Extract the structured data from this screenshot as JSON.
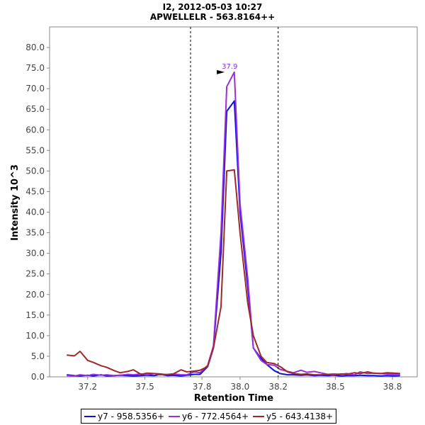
{
  "chart_data": {
    "type": "line",
    "title": "I2, 2012-05-03 10:27",
    "subtitle": "APWELLELR - 563.8164++",
    "xlabel": "Retention Time",
    "ylabel": "Intensity 10^3",
    "xlim": [
      37.0,
      38.93
    ],
    "ylim": [
      0,
      85
    ],
    "x_ticks": [
      "37.2",
      "37.5",
      "37.8",
      "38.0",
      "38.2",
      "38.5",
      "38.8"
    ],
    "x_tick_values": [
      37.2,
      37.5,
      37.8,
      38.0,
      38.2,
      38.5,
      38.8
    ],
    "y_ticks": [
      "0.0",
      "5.0",
      "10.0",
      "15.0",
      "20.0",
      "25.0",
      "30.0",
      "35.0",
      "40.0",
      "45.0",
      "50.0",
      "55.0",
      "60.0",
      "65.0",
      "70.0",
      "75.0",
      "80.0"
    ],
    "y_tick_values": [
      0,
      5,
      10,
      15,
      20,
      25,
      30,
      35,
      40,
      45,
      50,
      55,
      60,
      65,
      70,
      75,
      80
    ],
    "integration_bounds": [
      37.74,
      38.2
    ],
    "peak_annotation": {
      "x": 37.93,
      "y": 74.0,
      "label": "37.9",
      "color": "#8a2be2"
    },
    "series": [
      {
        "name": "y7 - 958.5356+",
        "color": "#1010e0",
        "x": [
          37.09,
          37.13,
          37.16,
          37.2,
          37.23,
          37.27,
          37.3,
          37.34,
          37.37,
          37.41,
          37.44,
          37.48,
          37.51,
          37.55,
          37.58,
          37.62,
          37.65,
          37.69,
          37.72,
          37.76,
          37.79,
          37.83,
          37.86,
          37.9,
          37.93,
          37.97,
          38.0,
          38.04,
          38.07,
          38.11,
          38.14,
          38.18,
          38.21,
          38.25,
          38.28,
          38.32,
          38.35,
          38.39,
          38.42,
          38.46,
          38.49,
          38.53,
          38.56,
          38.6,
          38.63,
          38.67,
          38.7,
          38.74,
          38.77,
          38.81,
          38.84
        ],
        "values": [
          0.5,
          0.3,
          0.2,
          0.4,
          0.2,
          0.5,
          0.2,
          0.3,
          0.4,
          0.3,
          0.2,
          0.3,
          0.4,
          0.3,
          0.6,
          0.3,
          0.4,
          0.2,
          0.4,
          0.6,
          0.6,
          2.5,
          7.0,
          30.0,
          64.5,
          67.0,
          40.0,
          22.0,
          7.0,
          4.5,
          3.0,
          1.5,
          0.8,
          0.5,
          0.5,
          0.4,
          0.5,
          0.3,
          0.4,
          0.3,
          0.4,
          0.2,
          0.3,
          0.3,
          0.4,
          0.3,
          0.3,
          0.2,
          0.3,
          0.2,
          0.3
        ]
      },
      {
        "name": "y6 - 772.4564+",
        "color": "#9a30d8",
        "x": [
          37.09,
          37.13,
          37.16,
          37.2,
          37.23,
          37.27,
          37.3,
          37.34,
          37.37,
          37.41,
          37.44,
          37.48,
          37.51,
          37.55,
          37.58,
          37.62,
          37.65,
          37.69,
          37.72,
          37.76,
          37.79,
          37.83,
          37.86,
          37.9,
          37.93,
          37.97,
          38.0,
          38.04,
          38.07,
          38.11,
          38.14,
          38.18,
          38.21,
          38.25,
          38.28,
          38.32,
          38.35,
          38.39,
          38.42,
          38.46,
          38.49,
          38.53,
          38.56,
          38.6,
          38.63,
          38.67,
          38.7,
          38.74,
          38.77,
          38.81,
          38.84
        ],
        "values": [
          0.3,
          0.2,
          0.5,
          0.3,
          0.6,
          0.4,
          0.5,
          0.3,
          0.4,
          0.6,
          0.5,
          0.7,
          0.5,
          0.8,
          0.5,
          0.6,
          0.7,
          0.5,
          0.5,
          1.2,
          1.0,
          2.8,
          7.5,
          35.0,
          70.5,
          74.0,
          42.0,
          24.0,
          7.0,
          4.0,
          3.0,
          2.8,
          1.8,
          1.3,
          1.0,
          1.6,
          1.1,
          1.3,
          1.0,
          0.6,
          0.7,
          0.6,
          0.8,
          0.5,
          1.2,
          0.8,
          0.9,
          0.8,
          0.7,
          0.6,
          0.7
        ]
      },
      {
        "name": "y5 - 643.4138+",
        "color": "#a02828",
        "x": [
          37.09,
          37.13,
          37.16,
          37.2,
          37.23,
          37.27,
          37.3,
          37.34,
          37.37,
          37.41,
          37.44,
          37.48,
          37.51,
          37.55,
          37.58,
          37.62,
          37.65,
          37.69,
          37.72,
          37.76,
          37.79,
          37.83,
          37.86,
          37.9,
          37.93,
          37.97,
          38.0,
          38.04,
          38.07,
          38.11,
          38.14,
          38.18,
          38.21,
          38.25,
          38.28,
          38.32,
          38.35,
          38.39,
          38.42,
          38.46,
          38.49,
          38.53,
          38.56,
          38.6,
          38.63,
          38.67,
          38.7,
          38.74,
          38.77,
          38.81,
          38.84
        ],
        "values": [
          5.3,
          5.1,
          6.2,
          4.0,
          3.5,
          2.7,
          2.3,
          1.5,
          1.0,
          1.3,
          1.7,
          0.6,
          0.9,
          0.8,
          0.7,
          0.5,
          0.7,
          1.7,
          1.2,
          1.4,
          1.6,
          2.5,
          7.0,
          17.0,
          50.0,
          50.3,
          35.0,
          18.0,
          10.0,
          5.0,
          3.5,
          3.2,
          2.5,
          1.2,
          0.8,
          0.6,
          0.7,
          0.5,
          0.5,
          0.6,
          0.4,
          0.7,
          0.6,
          1.0,
          0.8,
          1.2,
          0.9,
          0.8,
          1.0,
          0.9,
          0.8
        ]
      }
    ]
  }
}
